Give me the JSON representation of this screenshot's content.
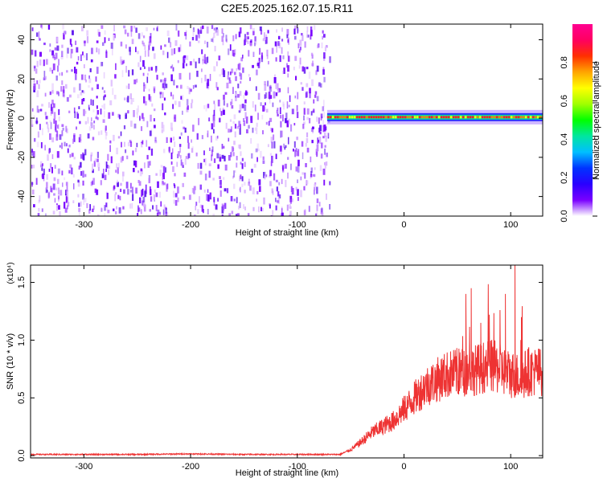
{
  "title": "C2E5.2025.162.07.15.R11",
  "chart_data": [
    {
      "type": "heatmap",
      "title": "C2E5.2025.162.07.15.R11",
      "xlabel": "Height of straight line (km)",
      "ylabel": "Frequency (Hz)",
      "xlim": [
        -350,
        130
      ],
      "ylim": [
        -50,
        48
      ],
      "xticks": [
        -300,
        -200,
        -100,
        0,
        100
      ],
      "yticks": [
        -40,
        -20,
        0,
        20,
        40
      ],
      "colorbar": {
        "label": "Normalized spectral amplitude",
        "range": [
          0,
          1
        ],
        "ticks": [
          "0.0",
          "0.2",
          "0.4",
          "0.6",
          "0.8"
        ],
        "colormap": [
          "#ffffff",
          "#7a00ff",
          "#2a00ff",
          "#0033ff",
          "#00bfff",
          "#00e6a0",
          "#00ff00",
          "#a0ff00",
          "#ffff00",
          "#ffa500",
          "#ff3000",
          "#ff0060",
          "#ff0090"
        ]
      },
      "regions": [
        {
          "name": "noise",
          "x_range": [
            -350,
            -70
          ],
          "freq_range": [
            -50,
            48
          ],
          "amplitude": [
            0.0,
            0.2
          ]
        },
        {
          "name": "carrier",
          "x_range": [
            -72,
            130
          ],
          "freq": 0.5,
          "amplitude": [
            0.5,
            1.0
          ]
        }
      ]
    },
    {
      "type": "line",
      "xlabel": "Height of straight line (km)",
      "ylabel": "SNR (10 * v/v)",
      "yscale_label": "(x10⁴)",
      "xlim": [
        -350,
        130
      ],
      "ylim": [
        -0.02,
        1.65
      ],
      "xticks": [
        -300,
        -200,
        -100,
        0,
        100
      ],
      "yticks": [
        "0.0",
        "0.5",
        "1.0",
        "1.5"
      ],
      "color": "#ee3333",
      "series": [
        {
          "x": [
            -350,
            -300,
            -250,
            -200,
            -150,
            -100,
            -60,
            -50,
            -40,
            -30,
            -20,
            -10,
            0,
            10,
            20,
            30,
            40,
            50,
            60,
            70,
            80,
            90,
            100,
            105,
            110,
            115,
            120,
            130
          ],
          "values": [
            0.01,
            0.01,
            0.01,
            0.015,
            0.01,
            0.01,
            0.01,
            0.05,
            0.12,
            0.2,
            0.25,
            0.3,
            0.4,
            0.5,
            0.6,
            0.65,
            0.7,
            0.72,
            0.73,
            0.75,
            0.78,
            0.75,
            0.7,
            0.7,
            0.65,
            0.73,
            0.73,
            0.73
          ]
        }
      ],
      "peaks": [
        {
          "x": 58,
          "value": 1.4
        },
        {
          "x": 63,
          "value": 1.45
        },
        {
          "x": 72,
          "value": 1.15
        },
        {
          "x": 80,
          "value": 1.22
        },
        {
          "x": 95,
          "value": 1.4
        },
        {
          "x": 104,
          "value": 1.65
        },
        {
          "x": 110,
          "value": 1.2
        }
      ]
    }
  ]
}
